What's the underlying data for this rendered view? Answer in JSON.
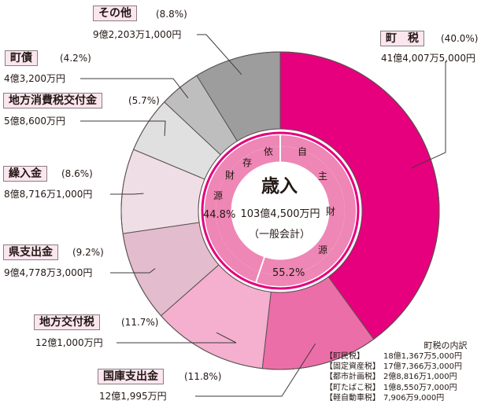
{
  "chart_data": {
    "type": "donut",
    "title": "歳入",
    "total_label": "103億4,500万円",
    "note": "（一般会計）",
    "series": [
      {
        "label": "町　税",
        "percent_label": "(40.0%)",
        "amount": "41億4,007万5,000円",
        "value": 40.0,
        "color": "#e6007e",
        "group": "own"
      },
      {
        "label": "国庫支出金",
        "percent_label": "(11.8%)",
        "amount": "12億1,995万円",
        "value": 11.8,
        "color": "#ec6ea8",
        "group": "dependent"
      },
      {
        "label": "地方交付税",
        "percent_label": "(11.7%)",
        "amount": "12億1,000万円",
        "value": 11.7,
        "color": "#f4b0ce",
        "group": "dependent"
      },
      {
        "label": "県支出金",
        "percent_label": "(9.2%)",
        "amount": "9億4,778万3,000円",
        "value": 9.2,
        "color": "#e3bccd",
        "group": "dependent"
      },
      {
        "label": "繰入金",
        "percent_label": "(8.6%)",
        "amount": "8億8,716万1,000円",
        "value": 8.6,
        "color": "#efdee6",
        "group": "dependent"
      },
      {
        "label": "地方消費税交付金",
        "percent_label": "(5.7%)",
        "amount": "5億8,600万円",
        "value": 5.7,
        "color": "#e1e0e0",
        "group": "dependent"
      },
      {
        "label": "町債",
        "percent_label": "(4.2%)",
        "amount": "4億3,200万円",
        "value": 4.2,
        "color": "#bfbebe",
        "group": "dependent"
      },
      {
        "label": "その他",
        "percent_label": "(8.8%)",
        "amount": "9億2,203万1,000円",
        "value": 8.8,
        "color": "#9e9d9d",
        "group": "dependent"
      }
    ],
    "inner_ring": [
      {
        "label_chars": [
          "自",
          "主",
          "財",
          "源"
        ],
        "percent_label": "55.2%",
        "value": 55.2
      },
      {
        "label_chars": [
          "依",
          "存",
          "財",
          "源"
        ],
        "percent_label": "44.8%",
        "value": 44.8
      }
    ],
    "breakdown": {
      "title": "町税の内訳",
      "items": [
        {
          "name": "【町民税】",
          "amount": "18億1,367万5,000円"
        },
        {
          "name": "【固定資産税】",
          "amount": "17億7,366万3,000円"
        },
        {
          "name": "【都市計画税】",
          "amount": "2億8,816万1,000円"
        },
        {
          "name": "【町たばこ税】",
          "amount": "1億8,550万7,000円"
        },
        {
          "name": "【軽自動車税】",
          "amount": "7,906万9,000円"
        }
      ]
    }
  }
}
